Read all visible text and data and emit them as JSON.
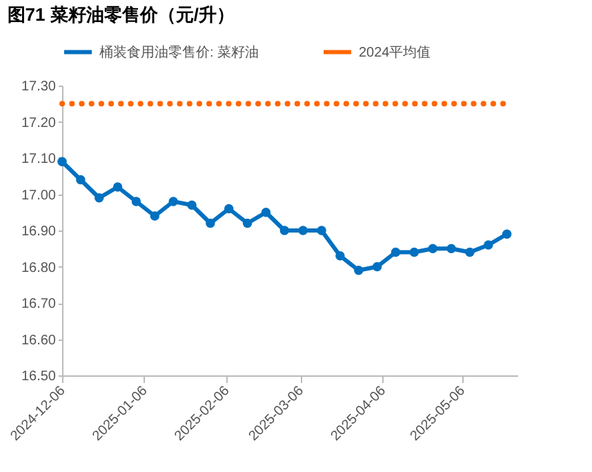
{
  "chart_data": {
    "type": "line",
    "title": "图71 菜籽油零售价（元/升）",
    "x": [
      "2024-12-06",
      "2024-12-13",
      "2024-12-20",
      "2024-12-27",
      "2025-01-03",
      "2025-01-10",
      "2025-01-17",
      "2025-01-24",
      "2025-01-31",
      "2025-02-07",
      "2025-02-14",
      "2025-02-21",
      "2025-02-28",
      "2025-03-07",
      "2025-03-14",
      "2025-03-21",
      "2025-03-28",
      "2025-04-04",
      "2025-04-11",
      "2025-04-18",
      "2025-04-25",
      "2025-05-02",
      "2025-05-09",
      "2025-05-16",
      "2025-05-23"
    ],
    "series": [
      {
        "name": "桶装食用油零售价: 菜籽油",
        "color": "#0070c0",
        "marker": "circle",
        "line_style": "solid",
        "values": [
          17.09,
          17.04,
          16.99,
          17.02,
          16.98,
          16.94,
          16.98,
          16.97,
          16.92,
          16.96,
          16.92,
          16.95,
          16.9,
          16.9,
          16.9,
          16.83,
          16.79,
          16.8,
          16.84,
          16.84,
          16.85,
          16.85,
          16.84,
          16.86,
          16.89
        ]
      },
      {
        "name": "2024平均值",
        "color": "#ff6600",
        "marker": "none",
        "line_style": "dotted",
        "values": [
          17.25,
          17.25,
          17.25,
          17.25,
          17.25,
          17.25,
          17.25,
          17.25,
          17.25,
          17.25,
          17.25,
          17.25,
          17.25,
          17.25,
          17.25,
          17.25,
          17.25,
          17.25,
          17.25,
          17.25,
          17.25,
          17.25,
          17.25,
          17.25,
          17.25
        ]
      }
    ],
    "xlim": [
      "2024-12-06",
      "2025-05-27"
    ],
    "xticks": [
      "2024-12-06",
      "2025-01-06",
      "2025-02-06",
      "2025-03-06",
      "2025-04-06",
      "2025-05-06"
    ],
    "ylim": [
      16.5,
      17.3
    ],
    "yticks": [
      {
        "value": 16.5,
        "label": "16.50"
      },
      {
        "value": 16.6,
        "label": "16.60"
      },
      {
        "value": 16.7,
        "label": "16.70"
      },
      {
        "value": 16.8,
        "label": "16.80"
      },
      {
        "value": 16.9,
        "label": "16.90"
      },
      {
        "value": 17.0,
        "label": "17.00"
      },
      {
        "value": 17.1,
        "label": "17.10"
      },
      {
        "value": 17.2,
        "label": "17.20"
      },
      {
        "value": 17.3,
        "label": "17.30"
      }
    ],
    "grid": false,
    "legend": "top"
  }
}
